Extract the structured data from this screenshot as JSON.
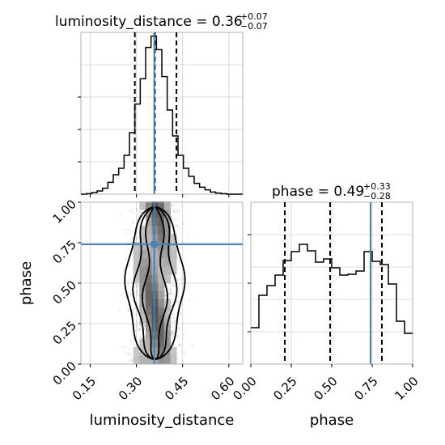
{
  "chart_data": [
    {
      "type": "histogram",
      "panel": "luminosity_distance marginal",
      "title": {
        "param": "luminosity_distance",
        "median": "0.36",
        "upper": "+0.07",
        "lower": "−0.07"
      },
      "bin_edges": [
        0.12,
        0.1375,
        0.155,
        0.1725,
        0.19,
        0.2075,
        0.225,
        0.2425,
        0.26,
        0.2775,
        0.295,
        0.3125,
        0.33,
        0.3475,
        0.365,
        0.3825,
        0.4,
        0.4175,
        0.435,
        0.4525,
        0.47,
        0.4875,
        0.505,
        0.5225,
        0.54,
        0.5575,
        0.575,
        0.5925,
        0.61,
        0.6275,
        0.645
      ],
      "values": [
        0,
        1,
        3,
        6,
        11,
        22,
        36,
        48,
        72,
        114,
        167,
        214,
        272,
        293,
        268,
        218,
        156,
        108,
        72,
        48,
        33,
        20,
        13,
        8,
        4,
        2,
        1,
        0,
        0,
        0
      ],
      "quantile_lines": [
        0.295,
        0.36,
        0.43
      ],
      "truth": 0.358,
      "xlim": [
        0.12,
        0.645
      ],
      "ylim": [
        0,
        300
      ],
      "grid": true
    },
    {
      "type": "histogram",
      "panel": "phase marginal",
      "title": {
        "param": "phase",
        "median": "0.49",
        "upper": "+0.33",
        "lower": "−0.28"
      },
      "bin_edges": [
        0.0,
        0.05,
        0.1,
        0.15,
        0.2,
        0.25,
        0.3,
        0.35,
        0.4,
        0.45,
        0.5,
        0.55,
        0.6,
        0.65,
        0.7,
        0.75,
        0.8,
        0.85,
        0.9,
        0.95,
        1.0
      ],
      "values": [
        45,
        85,
        97,
        110,
        128,
        139,
        148,
        140,
        126,
        130,
        119,
        110,
        111,
        115,
        139,
        127,
        123,
        99,
        53,
        38
      ],
      "quantile_lines": [
        0.21,
        0.49,
        0.81
      ],
      "truth": 0.74,
      "xlim": [
        0,
        1
      ],
      "ylim": [
        0,
        200
      ],
      "x_ticks": [
        "0.00",
        "0.25",
        "0.50",
        "0.75",
        "1.00"
      ],
      "xlabel": "phase",
      "grid": true
    },
    {
      "type": "heatmap",
      "panel": "joint luminosity_distance vs phase",
      "xlim": [
        0.12,
        0.645
      ],
      "ylim": [
        0,
        1
      ],
      "x_ticks": [
        "0.15",
        "0.30",
        "0.45",
        "0.60"
      ],
      "y_ticks": [
        "0.00",
        "0.25",
        "0.50",
        "0.75",
        "1.00"
      ],
      "xlabel": "luminosity_distance",
      "ylabel": "phase",
      "truth": {
        "x": 0.358,
        "y": 0.74
      },
      "grid": true
    }
  ]
}
